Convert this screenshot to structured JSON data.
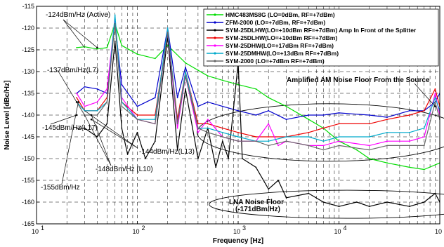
{
  "chart_data": {
    "type": "line",
    "xlabel": "Frequency [Hz]",
    "ylabel": "Noise Level [dBc/Hz]",
    "xscale": "log",
    "xlim": [
      10,
      100000
    ],
    "ylim": [
      -165,
      -115
    ],
    "xticks": [
      {
        "value": 10,
        "base": "10",
        "exp": "1"
      },
      {
        "value": 100,
        "base": "10",
        "exp": "2"
      },
      {
        "value": 1000,
        "base": "10",
        "exp": "3"
      },
      {
        "value": 10000,
        "base": "10",
        "exp": "4"
      },
      {
        "value": 100000,
        "base": "10",
        "exp": "5"
      }
    ],
    "yticks": [
      {
        "value": -115,
        "label": "-115"
      },
      {
        "value": -120,
        "label": "-120"
      },
      {
        "value": -125,
        "label": "-125"
      },
      {
        "value": -130,
        "label": "-130"
      },
      {
        "value": -135,
        "label": "-135"
      },
      {
        "value": -140,
        "label": "-140"
      },
      {
        "value": -145,
        "label": "-145"
      },
      {
        "value": -150,
        "label": "-150"
      },
      {
        "value": -155,
        "label": "-155"
      },
      {
        "value": -160,
        "label": "-160"
      },
      {
        "value": -165,
        "label": "-165"
      }
    ],
    "grid": true,
    "legend_position": "top-right",
    "series": [
      {
        "name": "HMC483MS8G (LO=0dBm, RF=+7dBm)",
        "color": "#00dd00",
        "points": [
          [
            25,
            -124.5
          ],
          [
            30,
            -124.3
          ],
          [
            40,
            -124.8
          ],
          [
            50,
            -124.5
          ],
          [
            60,
            -119
          ],
          [
            70,
            -124
          ],
          [
            100,
            -126
          ],
          [
            150,
            -127
          ],
          [
            200,
            -124
          ],
          [
            300,
            -128
          ],
          [
            500,
            -131
          ],
          [
            700,
            -132
          ],
          [
            1000,
            -133
          ],
          [
            1500,
            -134
          ],
          [
            2000,
            -136
          ],
          [
            3000,
            -138
          ],
          [
            5000,
            -141
          ],
          [
            7000,
            -143
          ],
          [
            10000,
            -146
          ],
          [
            15000,
            -148
          ],
          [
            20000,
            -150
          ],
          [
            30000,
            -151
          ],
          [
            50000,
            -152
          ],
          [
            70000,
            -152.5
          ],
          [
            100000,
            -151
          ]
        ]
      },
      {
        "name": "ZFM-2000 (LO=+7dBm, RF=+7dBm)",
        "color": "#0000cc",
        "points": [
          [
            25,
            -135
          ],
          [
            30,
            -133.5
          ],
          [
            40,
            -134
          ],
          [
            50,
            -135
          ],
          [
            60,
            -119
          ],
          [
            70,
            -133
          ],
          [
            100,
            -138
          ],
          [
            150,
            -136
          ],
          [
            200,
            -120
          ],
          [
            250,
            -136
          ],
          [
            300,
            -129
          ],
          [
            400,
            -138
          ],
          [
            500,
            -137
          ],
          [
            700,
            -138
          ],
          [
            1000,
            -139
          ],
          [
            1500,
            -140
          ],
          [
            2000,
            -139
          ],
          [
            3000,
            -141
          ],
          [
            5000,
            -140
          ],
          [
            7000,
            -140
          ],
          [
            10000,
            -139.5
          ],
          [
            20000,
            -140
          ],
          [
            30000,
            -140.5
          ],
          [
            50000,
            -139
          ],
          [
            70000,
            -139
          ],
          [
            90000,
            -137
          ],
          [
            100000,
            -135
          ]
        ]
      },
      {
        "name": "SYM-25DLHW(LO=+10dBm RF=+7dBm) Amp In Front of the Splitter",
        "color": "#000000",
        "points": [
          [
            25,
            -143
          ],
          [
            30,
            -143
          ],
          [
            40,
            -145
          ],
          [
            50,
            -142
          ],
          [
            60,
            -123
          ],
          [
            70,
            -143
          ],
          [
            80,
            -149
          ],
          [
            100,
            -144
          ],
          [
            120,
            -150
          ],
          [
            150,
            -146
          ],
          [
            200,
            -122
          ],
          [
            250,
            -148
          ],
          [
            300,
            -134
          ],
          [
            400,
            -150
          ],
          [
            500,
            -143
          ],
          [
            600,
            -152
          ],
          [
            700,
            -146
          ],
          [
            800,
            -150
          ],
          [
            1000,
            -128
          ],
          [
            1100,
            -150
          ],
          [
            1500,
            -152
          ],
          [
            2000,
            -157
          ],
          [
            2500,
            -155
          ],
          [
            3000,
            -159
          ],
          [
            5000,
            -158
          ],
          [
            7000,
            -160
          ],
          [
            10000,
            -161
          ],
          [
            15000,
            -160
          ],
          [
            20000,
            -161
          ],
          [
            30000,
            -160
          ],
          [
            50000,
            -161
          ],
          [
            70000,
            -160
          ],
          [
            90000,
            -158
          ],
          [
            100000,
            -160
          ]
        ]
      },
      {
        "name": "SYM-25DLHW(LO=+10dBm RF=+7dBm)",
        "color": "#ee0000",
        "points": [
          [
            25,
            -136
          ],
          [
            30,
            -139
          ],
          [
            40,
            -139
          ],
          [
            50,
            -136
          ],
          [
            60,
            -118
          ],
          [
            70,
            -137
          ],
          [
            100,
            -140
          ],
          [
            150,
            -140
          ],
          [
            200,
            -121
          ],
          [
            250,
            -141
          ],
          [
            300,
            -130
          ],
          [
            400,
            -142
          ],
          [
            500,
            -142
          ],
          [
            700,
            -143
          ],
          [
            1000,
            -144
          ],
          [
            1500,
            -145
          ],
          [
            2000,
            -145
          ],
          [
            3000,
            -145
          ],
          [
            5000,
            -144
          ],
          [
            7000,
            -143
          ],
          [
            10000,
            -142
          ],
          [
            20000,
            -142
          ],
          [
            30000,
            -141
          ],
          [
            50000,
            -140
          ],
          [
            70000,
            -139
          ],
          [
            90000,
            -134
          ],
          [
            100000,
            -138
          ]
        ]
      },
      {
        "name": "SYM-25DHW(LO=+17dBm RF=+7dBm)",
        "color": "#ff00ff",
        "points": [
          [
            25,
            -135
          ],
          [
            30,
            -138
          ],
          [
            40,
            -137
          ],
          [
            50,
            -134
          ],
          [
            60,
            -118
          ],
          [
            70,
            -136
          ],
          [
            100,
            -141
          ],
          [
            150,
            -142
          ],
          [
            200,
            -121
          ],
          [
            250,
            -143
          ],
          [
            300,
            -131
          ],
          [
            400,
            -144
          ],
          [
            500,
            -141
          ],
          [
            700,
            -145
          ],
          [
            1000,
            -146
          ],
          [
            1500,
            -146
          ],
          [
            2000,
            -142
          ],
          [
            2500,
            -147
          ],
          [
            3000,
            -146
          ],
          [
            5000,
            -147
          ],
          [
            7000,
            -147
          ],
          [
            10000,
            -146
          ],
          [
            20000,
            -147
          ],
          [
            30000,
            -146
          ],
          [
            50000,
            -146
          ],
          [
            70000,
            -145
          ],
          [
            90000,
            -135
          ],
          [
            100000,
            -140
          ]
        ]
      },
      {
        "name": "SYM-25DMHW(LO=+13dBm RF=+7dBm)",
        "color": "#00aacc",
        "points": [
          [
            25,
            -137
          ],
          [
            30,
            -139
          ],
          [
            40,
            -139
          ],
          [
            50,
            -137
          ],
          [
            60,
            -117
          ],
          [
            70,
            -137
          ],
          [
            100,
            -141
          ],
          [
            150,
            -141
          ],
          [
            200,
            -120
          ],
          [
            250,
            -142
          ],
          [
            300,
            -130
          ],
          [
            400,
            -143
          ],
          [
            500,
            -143
          ],
          [
            700,
            -144
          ],
          [
            1000,
            -145
          ],
          [
            1500,
            -146
          ],
          [
            2000,
            -146
          ],
          [
            3000,
            -145
          ],
          [
            5000,
            -145
          ],
          [
            7000,
            -146
          ],
          [
            10000,
            -145
          ],
          [
            20000,
            -145
          ],
          [
            30000,
            -144
          ],
          [
            50000,
            -144
          ],
          [
            70000,
            -143
          ],
          [
            90000,
            -136
          ],
          [
            100000,
            -139
          ]
        ]
      },
      {
        "name": "SYM-2000 (LO=+7dBm RF=+7dBm)",
        "color": "#666666",
        "points": [
          [
            25,
            -137
          ],
          [
            30,
            -140
          ],
          [
            40,
            -140
          ],
          [
            50,
            -137
          ],
          [
            60,
            -119
          ],
          [
            70,
            -138
          ],
          [
            100,
            -141
          ],
          [
            150,
            -142
          ],
          [
            200,
            -121
          ],
          [
            250,
            -142
          ],
          [
            300,
            -131
          ],
          [
            400,
            -143
          ],
          [
            500,
            -144
          ],
          [
            700,
            -145
          ],
          [
            1000,
            -146
          ],
          [
            1500,
            -146
          ],
          [
            2000,
            -147
          ],
          [
            3000,
            -146
          ],
          [
            5000,
            -147
          ],
          [
            7000,
            -148
          ],
          [
            10000,
            -147
          ],
          [
            20000,
            -148
          ],
          [
            30000,
            -147
          ],
          [
            50000,
            -147
          ],
          [
            70000,
            -147
          ],
          [
            90000,
            -137
          ],
          [
            100000,
            -141
          ]
        ]
      }
    ],
    "annotations": [
      {
        "id": "active",
        "text": "-124dBm/Hz (Active)",
        "style": "normal",
        "x": 40,
        "y": -124.5
      },
      {
        "id": "l7",
        "text": "-137dBm/Hz(L7)",
        "style": "normal",
        "x": 25,
        "y": -137
      },
      {
        "id": "l17",
        "text": "-145dBm/Hz(L17)",
        "style": "normal",
        "x": 25,
        "y": -140
      },
      {
        "id": "l13",
        "text": "-144dBm/Hz(L13)",
        "style": "normal",
        "x": 35,
        "y": -141
      },
      {
        "id": "l10",
        "text": "-148dBm/Hz (L10)",
        "style": "normal",
        "x": 35,
        "y": -140
      },
      {
        "id": "b155",
        "text": "-155dBm/Hz",
        "style": "normal",
        "x": 26,
        "y": -137
      },
      {
        "id": "amam",
        "text": "Amplified AM Noise Floor From the Source",
        "style": "bold",
        "x": 90000,
        "y": -138
      },
      {
        "id": "lna1",
        "text": "LNA Noise Floor",
        "style": "bold",
        "x": 20000,
        "y": -160
      },
      {
        "id": "lna2",
        "text": "(-171dBm/Hz)",
        "style": "bold",
        "x": 20000,
        "y": -160
      }
    ]
  }
}
